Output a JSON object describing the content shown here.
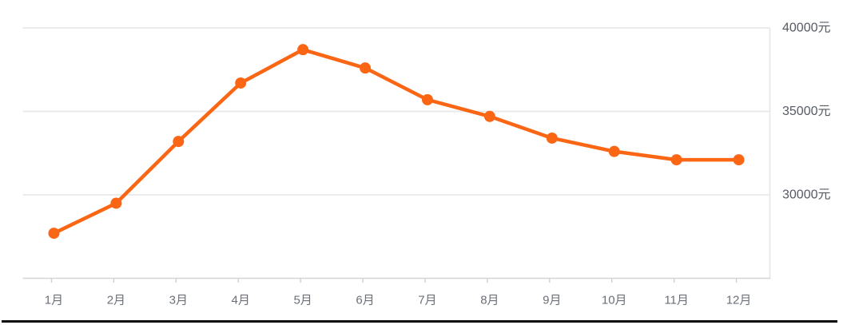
{
  "chart_data": {
    "type": "line",
    "title": "",
    "xlabel": "",
    "ylabel": "",
    "categories": [
      "1月",
      "2月",
      "3月",
      "4月",
      "5月",
      "6月",
      "7月",
      "8月",
      "9月",
      "10月",
      "11月",
      "12月"
    ],
    "values": [
      27700,
      29500,
      33200,
      36700,
      38700,
      37600,
      35700,
      34700,
      33400,
      32600,
      32100,
      32100
    ],
    "unit": "元",
    "ylim": [
      25000,
      40000
    ],
    "y_ticks": [
      {
        "label": "40000元",
        "value": 40000
      },
      {
        "label": "35000元",
        "value": 35000
      },
      {
        "label": "30000元",
        "value": 30000
      }
    ],
    "grid": true,
    "y_axis_position": "right",
    "legend": null,
    "marker": "circle"
  },
  "colors": {
    "line": "#fa6614",
    "gridline": "#e8e8e8",
    "axis_line": "#d6d6d6",
    "tick": "#cfcfcf",
    "x_label": "#6b7078",
    "y_label": "#565b63",
    "divider": "#0b0b0b",
    "background": "#ffffff"
  }
}
